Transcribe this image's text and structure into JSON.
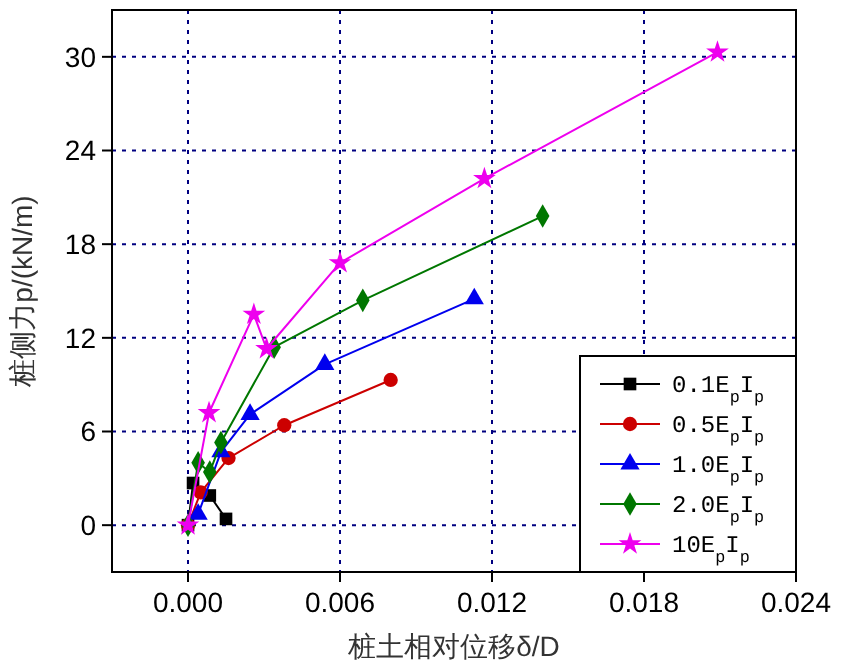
{
  "chart_data": {
    "type": "line",
    "xlabel": "桩土相对位移δ/D",
    "ylabel": "桩侧力p/(kN/m)",
    "xlim": [
      -0.003,
      0.024
    ],
    "ylim": [
      -3,
      33
    ],
    "xticks": [
      {
        "value": 0,
        "label": "0.000"
      },
      0.006,
      0.012,
      0.018,
      0.024
    ],
    "yticks": [
      0,
      6,
      12,
      18,
      24,
      30
    ],
    "grid": true,
    "legend": "bottom right",
    "series": [
      {
        "name": "0.1E$_{p}$I$_{p}$",
        "color": "#000000",
        "marker": "square",
        "x": [
          0,
          0.0002,
          0.00086,
          0.0015
        ],
        "values": [
          0,
          2.7,
          1.9,
          0.4
        ]
      },
      {
        "name": "0.5E$_{p}$I$_{p}$",
        "color": "#cc0000",
        "marker": "circle",
        "x": [
          0,
          0.0005,
          0.0016,
          0.0038,
          0.008
        ],
        "values": [
          0,
          2.1,
          4.3,
          6.4,
          9.3
        ]
      },
      {
        "name": "1.0E$_{p}$I$_{p}$",
        "color": "#0000ee",
        "marker": "triangle",
        "x": [
          0.0004,
          0.0013,
          0.00245,
          0.0054,
          0.0113
        ],
        "values": [
          0.7,
          4.7,
          7.1,
          10.3,
          14.5
        ]
      },
      {
        "name": "2.0E$_{p}$I$_{p}$",
        "color": "#007700",
        "marker": "diamond",
        "x": [
          0,
          0.0004,
          0.00086,
          0.0013,
          0.0034,
          0.0069,
          0.014
        ],
        "values": [
          0,
          4.0,
          3.4,
          5.3,
          11.4,
          14.4,
          19.8
        ]
      },
      {
        "name": "10E$_{p}$I$_{p}$",
        "color": "#ee00ee",
        "marker": "star",
        "x": [
          0,
          0.00083,
          0.0026,
          0.0031,
          0.006,
          0.0117,
          0.0209
        ],
        "values": [
          0,
          7.2,
          13.5,
          11.3,
          16.8,
          22.2,
          30.3
        ]
      }
    ]
  }
}
